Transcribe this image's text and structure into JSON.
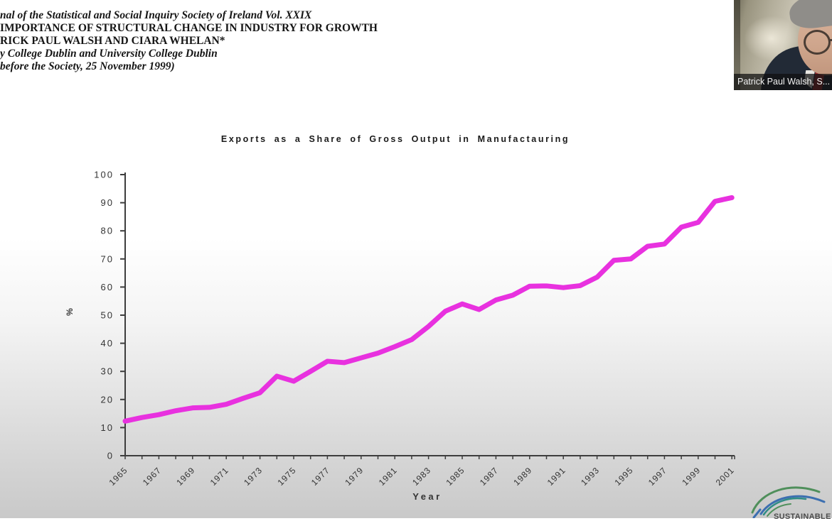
{
  "paper_header": {
    "line1": "nal of the Statistical and Social Inquiry Society of Ireland Vol. XXIX",
    "line2": "IMPORTANCE OF STRUCTURAL CHANGE IN INDUSTRY FOR GROWTH",
    "line3": "RICK PAUL WALSH AND CIARA WHELAN*",
    "line4": "y College Dublin and University College Dublin",
    "line5": "before the Society, 25 November 1999)"
  },
  "webcam": {
    "participant_name": "Patrick Paul Walsh, S..."
  },
  "logo": {
    "text": "SUSTAINABLE D",
    "arc_colors": [
      "#4F8F5B",
      "#3C6FB0",
      "#2F8C85"
    ]
  },
  "chart_data": {
    "type": "line",
    "title": "Exports as a Share of Gross Output in Manufactauring",
    "xlabel": "Year",
    "ylabel": "%",
    "x": [
      1965,
      1966,
      1967,
      1968,
      1969,
      1970,
      1971,
      1972,
      1973,
      1974,
      1975,
      1976,
      1977,
      1978,
      1979,
      1980,
      1981,
      1982,
      1983,
      1984,
      1985,
      1986,
      1987,
      1988,
      1989,
      1990,
      1991,
      1992,
      1993,
      1994,
      1995,
      1996,
      1997,
      1998,
      1999,
      2000,
      2001
    ],
    "values": [
      12.3,
      13.6,
      14.6,
      16,
      17,
      17.2,
      18.3,
      20.4,
      22.4,
      28.3,
      26.5,
      30,
      33.6,
      33.1,
      34.8,
      36.5,
      38.8,
      41.3,
      46,
      51.4,
      54,
      52,
      55.4,
      57.1,
      60.3,
      60.4,
      59.8,
      60.5,
      63.5,
      69.5,
      70,
      74.5,
      75.3,
      81.3,
      83,
      90.5,
      91.8
    ],
    "ylim": [
      0,
      100
    ],
    "yticks": [
      0,
      10,
      20,
      30,
      40,
      50,
      60,
      70,
      80,
      90,
      100
    ],
    "xtick_labels": [
      "1965",
      "1967",
      "1969",
      "1971",
      "1973",
      "1975",
      "1977",
      "1979",
      "1981",
      "1983",
      "1985",
      "1987",
      "1989",
      "1991",
      "1993",
      "1995",
      "1997",
      "1999",
      "2001"
    ],
    "xtick_label_step": 2,
    "grid": false,
    "legend": "none",
    "line_color": "#E831DF",
    "axis_color": "#3d3d3d",
    "tick_text_color": "#333333"
  }
}
